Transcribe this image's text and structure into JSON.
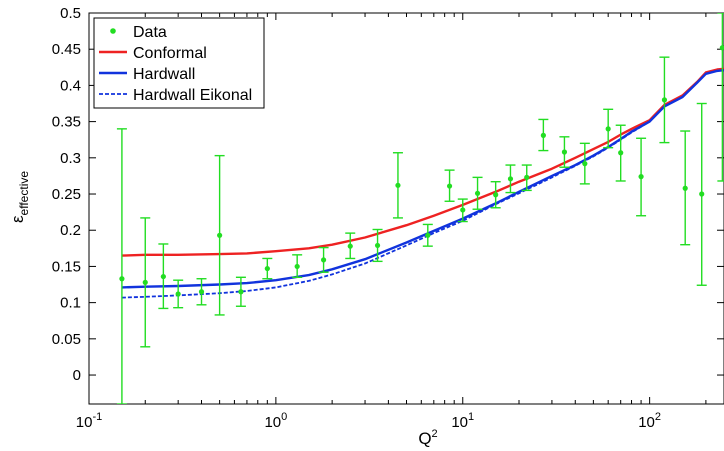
{
  "chart_data": {
    "type": "line",
    "title": "",
    "xlabel": "Q",
    "xlabel_sup": "2",
    "ylabel": "ε",
    "ylabel_sub": "effective",
    "x_scale": "log",
    "xlim": [
      0.1,
      250
    ],
    "ylim": [
      -0.04,
      0.5
    ],
    "xticks": [
      {
        "value": 0.1,
        "base": "10",
        "exp": "-1"
      },
      {
        "value": 1,
        "base": "10",
        "exp": "0"
      },
      {
        "value": 10,
        "base": "10",
        "exp": "1"
      },
      {
        "value": 100,
        "base": "10",
        "exp": "2"
      }
    ],
    "yticks": [
      "0",
      "0.05",
      "0.1",
      "0.15",
      "0.2",
      "0.25",
      "0.3",
      "0.35",
      "0.4",
      "0.45",
      "0.5"
    ],
    "grid": false,
    "legend_position": "top-left",
    "series": [
      {
        "name": "Data",
        "kind": "errorbar",
        "color": "#22dd22",
        "points": [
          {
            "x": 0.15,
            "y": 0.133,
            "lo": -0.04,
            "hi": 0.34
          },
          {
            "x": 0.2,
            "y": 0.128,
            "lo": 0.039,
            "hi": 0.217
          },
          {
            "x": 0.25,
            "y": 0.136,
            "lo": 0.092,
            "hi": 0.181
          },
          {
            "x": 0.3,
            "y": 0.112,
            "lo": 0.093,
            "hi": 0.131
          },
          {
            "x": 0.4,
            "y": 0.115,
            "lo": 0.097,
            "hi": 0.133
          },
          {
            "x": 0.5,
            "y": 0.193,
            "lo": 0.083,
            "hi": 0.303
          },
          {
            "x": 0.65,
            "y": 0.115,
            "lo": 0.095,
            "hi": 0.135
          },
          {
            "x": 0.9,
            "y": 0.147,
            "lo": 0.133,
            "hi": 0.161
          },
          {
            "x": 1.3,
            "y": 0.15,
            "lo": 0.135,
            "hi": 0.166
          },
          {
            "x": 1.8,
            "y": 0.159,
            "lo": 0.142,
            "hi": 0.176
          },
          {
            "x": 2.5,
            "y": 0.178,
            "lo": 0.161,
            "hi": 0.196
          },
          {
            "x": 3.5,
            "y": 0.179,
            "lo": 0.157,
            "hi": 0.201
          },
          {
            "x": 4.5,
            "y": 0.262,
            "lo": 0.217,
            "hi": 0.307
          },
          {
            "x": 6.5,
            "y": 0.193,
            "lo": 0.178,
            "hi": 0.208
          },
          {
            "x": 8.5,
            "y": 0.261,
            "lo": 0.24,
            "hi": 0.283
          },
          {
            "x": 10.0,
            "y": 0.228,
            "lo": 0.212,
            "hi": 0.243
          },
          {
            "x": 12.0,
            "y": 0.251,
            "lo": 0.229,
            "hi": 0.273
          },
          {
            "x": 15.0,
            "y": 0.249,
            "lo": 0.231,
            "hi": 0.267
          },
          {
            "x": 18.0,
            "y": 0.271,
            "lo": 0.252,
            "hi": 0.29
          },
          {
            "x": 22.0,
            "y": 0.273,
            "lo": 0.255,
            "hi": 0.29
          },
          {
            "x": 27.0,
            "y": 0.331,
            "lo": 0.31,
            "hi": 0.353
          },
          {
            "x": 35.0,
            "y": 0.308,
            "lo": 0.287,
            "hi": 0.329
          },
          {
            "x": 45.0,
            "y": 0.292,
            "lo": 0.264,
            "hi": 0.32
          },
          {
            "x": 60.0,
            "y": 0.34,
            "lo": 0.314,
            "hi": 0.367
          },
          {
            "x": 70.0,
            "y": 0.307,
            "lo": 0.268,
            "hi": 0.345
          },
          {
            "x": 90.0,
            "y": 0.274,
            "lo": 0.22,
            "hi": 0.327
          },
          {
            "x": 120.0,
            "y": 0.38,
            "lo": 0.321,
            "hi": 0.439
          },
          {
            "x": 155.0,
            "y": 0.258,
            "lo": 0.18,
            "hi": 0.337
          },
          {
            "x": 190.0,
            "y": 0.25,
            "lo": 0.124,
            "hi": 0.375
          },
          {
            "x": 245.0,
            "y": 0.452,
            "lo": 0.268,
            "hi": 0.5
          }
        ]
      },
      {
        "name": "Conformal",
        "kind": "line",
        "color": "#ee2222",
        "dash": "solid",
        "x": [
          0.15,
          0.2,
          0.3,
          0.5,
          0.7,
          1.0,
          1.5,
          2.0,
          3.0,
          5.0,
          7.0,
          10.0,
          15.0,
          20.0,
          30.0,
          40.0,
          50.0,
          60.0,
          70.0,
          80.0,
          100.0,
          120.0,
          150.0,
          180.0,
          200.0,
          230.0,
          250.0
        ],
        "y": [
          0.165,
          0.166,
          0.166,
          0.167,
          0.168,
          0.171,
          0.175,
          0.18,
          0.19,
          0.207,
          0.22,
          0.235,
          0.253,
          0.267,
          0.285,
          0.3,
          0.312,
          0.322,
          0.332,
          0.34,
          0.352,
          0.373,
          0.386,
          0.405,
          0.418,
          0.422,
          0.423
        ]
      },
      {
        "name": "Hardwall",
        "kind": "line",
        "color": "#1133dd",
        "dash": "solid",
        "x": [
          0.15,
          0.2,
          0.3,
          0.5,
          0.7,
          1.0,
          1.5,
          2.0,
          3.0,
          5.0,
          7.0,
          10.0,
          15.0,
          20.0,
          30.0,
          40.0,
          50.0,
          60.0,
          70.0,
          80.0,
          100.0,
          120.0,
          150.0,
          180.0,
          200.0,
          230.0,
          250.0
        ],
        "y": [
          0.121,
          0.122,
          0.123,
          0.125,
          0.127,
          0.131,
          0.138,
          0.146,
          0.16,
          0.183,
          0.199,
          0.216,
          0.237,
          0.253,
          0.275,
          0.29,
          0.303,
          0.315,
          0.326,
          0.336,
          0.35,
          0.371,
          0.384,
          0.404,
          0.416,
          0.42,
          0.421
        ]
      },
      {
        "name": "Hardwall Eikonal",
        "kind": "line",
        "color": "#1133dd",
        "dash": "dashed",
        "x": [
          0.15,
          0.2,
          0.3,
          0.5,
          0.7,
          1.0,
          1.5,
          2.0,
          3.0,
          5.0,
          7.0,
          10.0,
          15.0,
          20.0,
          30.0,
          40.0,
          50.0,
          60.0,
          70.0,
          80.0,
          100.0,
          120.0,
          150.0,
          180.0,
          200.0,
          230.0,
          250.0
        ],
        "y": [
          0.107,
          0.108,
          0.11,
          0.113,
          0.116,
          0.121,
          0.13,
          0.139,
          0.154,
          0.179,
          0.196,
          0.213,
          0.236,
          0.251,
          0.273,
          0.289,
          0.302,
          0.314,
          0.325,
          0.335,
          0.35,
          0.371,
          0.384,
          0.404,
          0.416,
          0.42,
          0.421
        ]
      }
    ]
  }
}
